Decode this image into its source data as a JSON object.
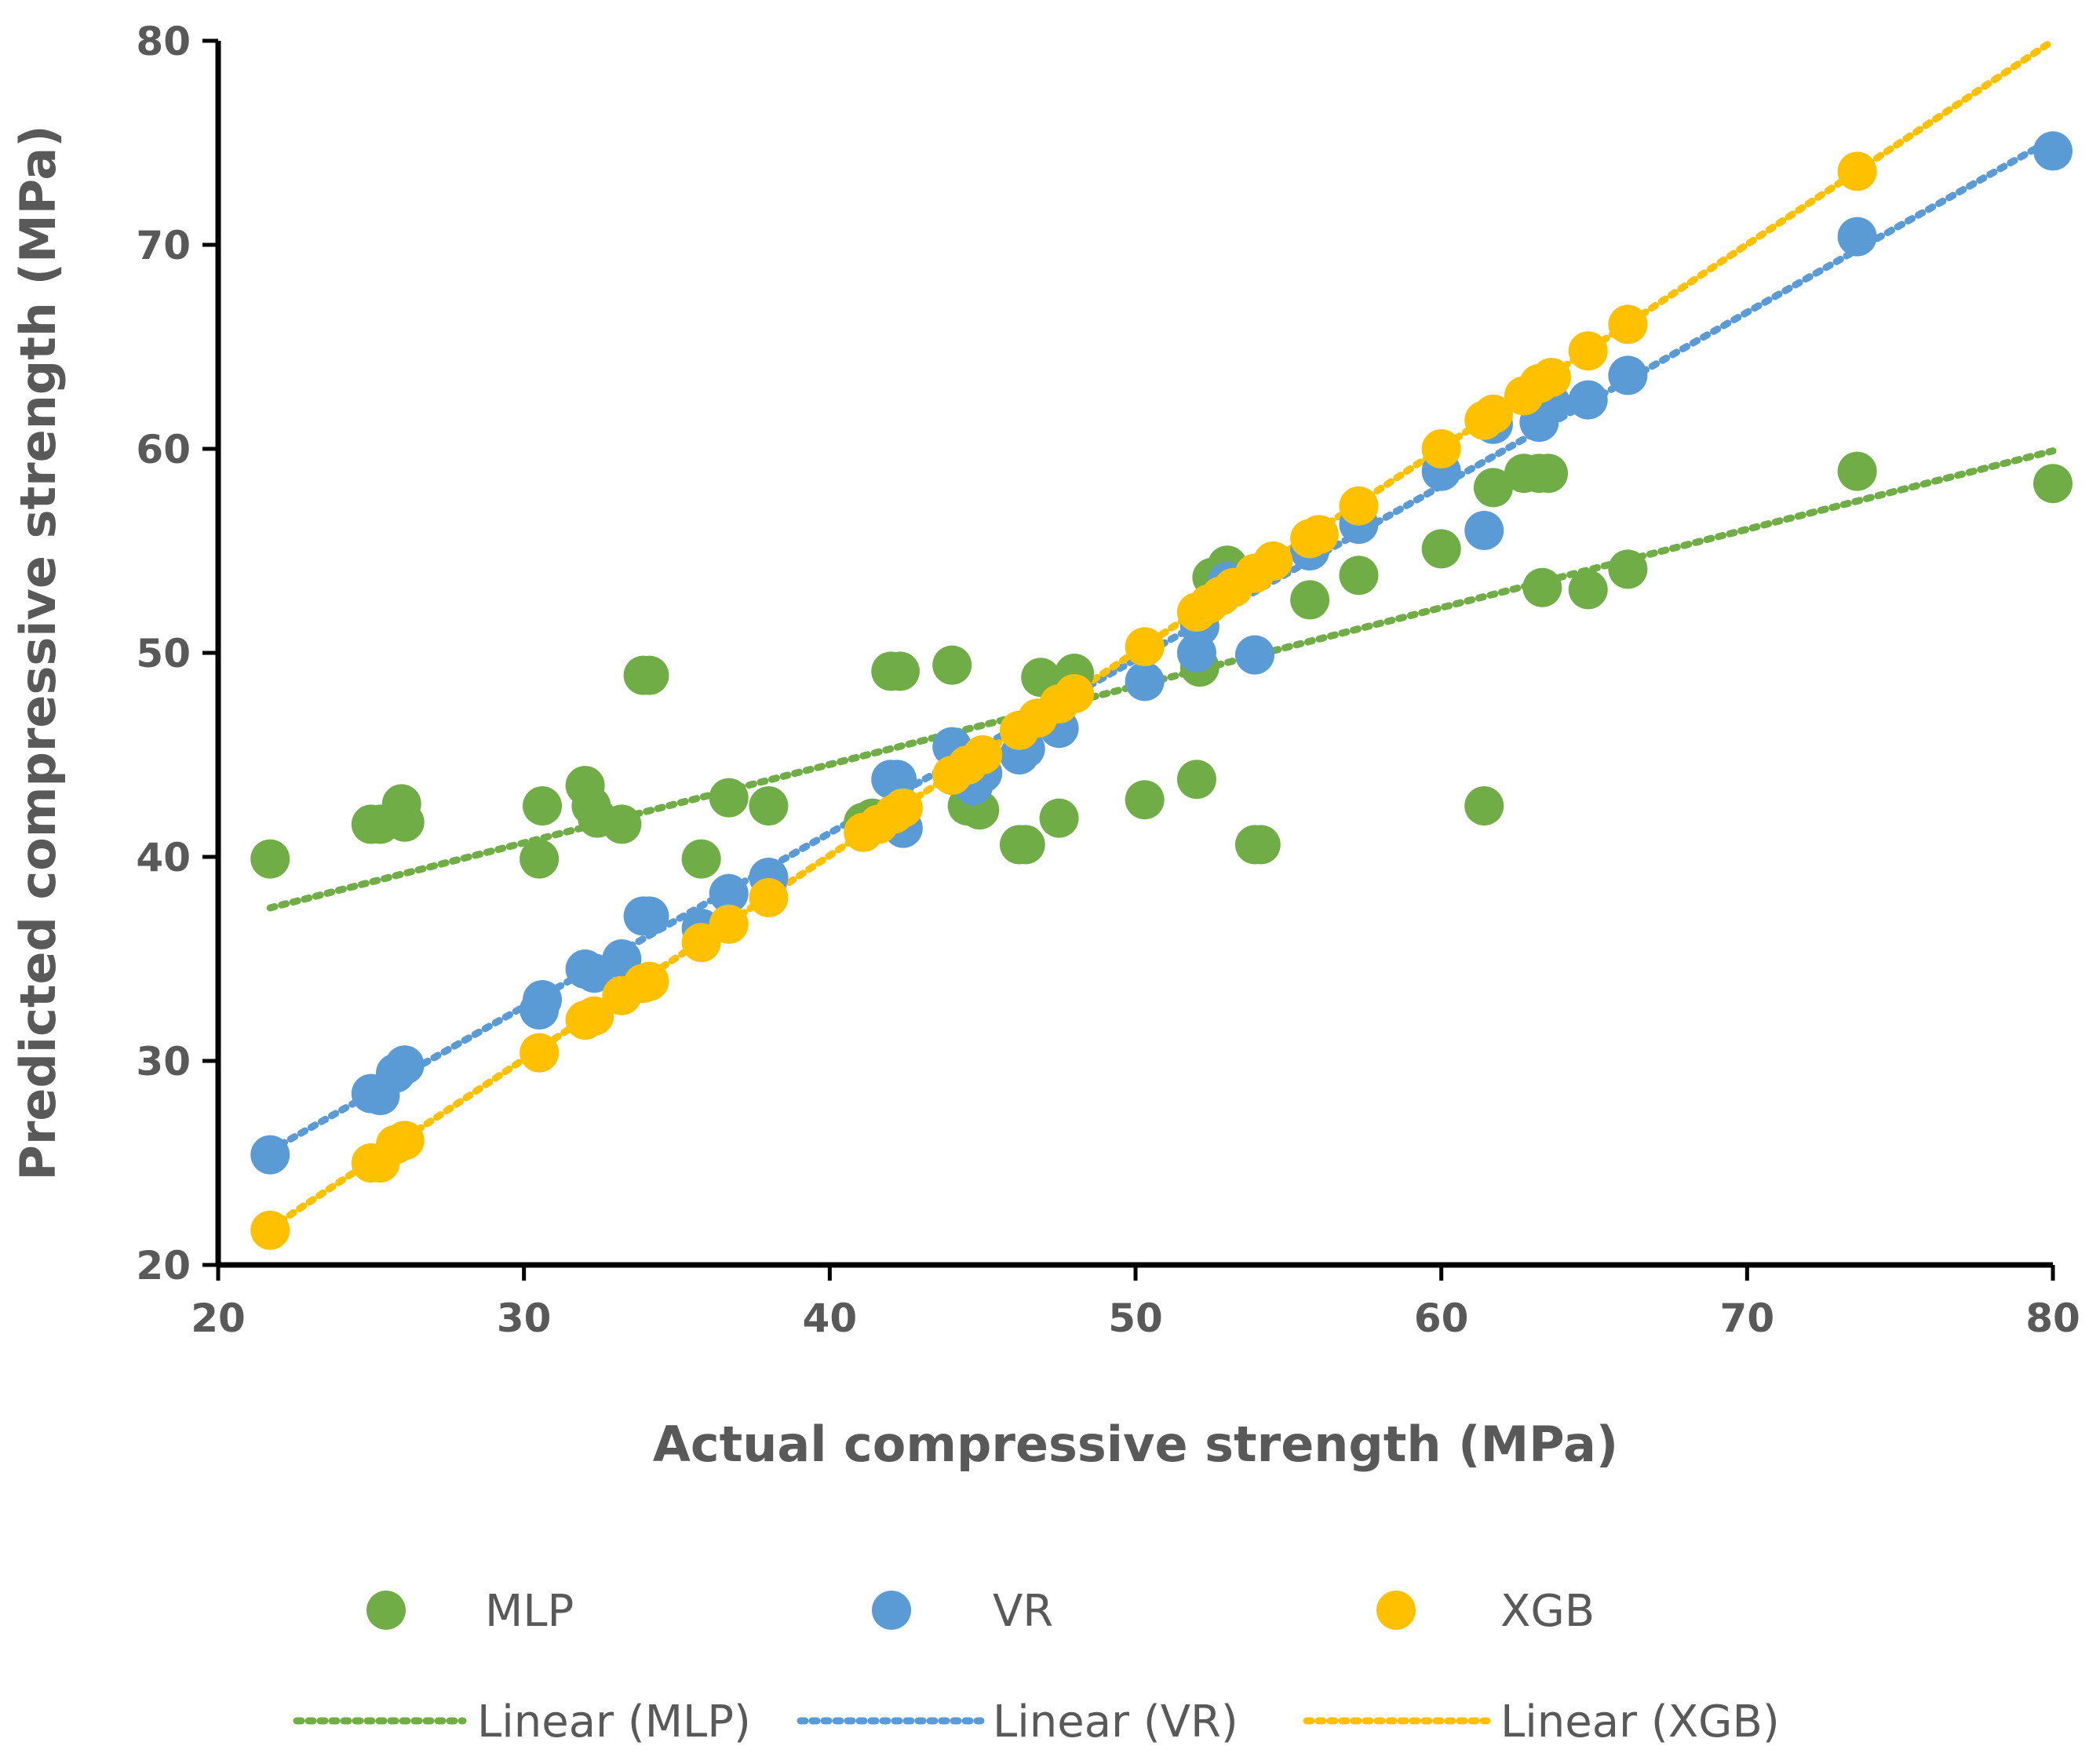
{
  "chart_data": {
    "type": "scatter",
    "xlabel": "Actual compressive strength (MPa)",
    "ylabel": "Predicted compressive strength (MPa)",
    "xlim": [
      20,
      80
    ],
    "ylim": [
      20,
      80
    ],
    "xticks": [
      "20",
      "30",
      "40",
      "50",
      "60",
      "70",
      "80"
    ],
    "yticks": [
      "20",
      "30",
      "40",
      "50",
      "60",
      "70",
      "80"
    ],
    "legend_position": "bottom",
    "series": [
      {
        "name": "MLP",
        "color": "#70ad47",
        "x": [
          21.7,
          25,
          25.3,
          26,
          26.1,
          30.5,
          30.6,
          32,
          32.2,
          32.4,
          33.2,
          33.9,
          34.1,
          35.8,
          36.7,
          38,
          41.1,
          41.4,
          42,
          42.3,
          44,
          44.5,
          44.9,
          46.2,
          46.4,
          46.9,
          47.5,
          48,
          50.3,
          52,
          52.1,
          52.5,
          53,
          53.9,
          54.1,
          55.7,
          57.3,
          60,
          61.4,
          61.7,
          62.7,
          63.2,
          63.5,
          63.3,
          64.8,
          66.1,
          73.6,
          80
        ],
        "y": [
          39.9,
          41.6,
          41.6,
          42.6,
          41.7,
          39.9,
          42.5,
          43.5,
          42.5,
          41.9,
          41.6,
          48.9,
          48.9,
          39.9,
          42.9,
          42.5,
          41.7,
          41.9,
          49.1,
          49.1,
          49.4,
          42.5,
          42.3,
          40.6,
          40.6,
          48.8,
          41.9,
          49,
          42.8,
          43.8,
          49.3,
          53.7,
          54.3,
          40.6,
          40.6,
          52.6,
          53.8,
          55.1,
          42.5,
          58.1,
          58.8,
          58.8,
          58.8,
          53.2,
          53.1,
          54.1,
          58.9,
          58.3
        ]
      },
      {
        "name": "VR",
        "color": "#5b9bd5",
        "x": [
          21.7,
          25,
          25.3,
          25.8,
          26.1,
          30.5,
          30.6,
          32,
          32.3,
          33.2,
          33.9,
          34.1,
          35.8,
          36.7,
          38,
          42,
          42.2,
          42.4,
          44,
          44.7,
          45,
          46.2,
          46.4,
          47.5,
          50.3,
          52,
          52.1,
          53,
          53.9,
          55.7,
          57.3,
          60,
          61.4,
          61.7,
          63.2,
          63.6,
          64.8,
          66.1,
          73.6,
          80
        ],
        "y": [
          25.4,
          28.4,
          28.3,
          29.4,
          29.8,
          32.5,
          33,
          34.5,
          34.3,
          35,
          37.1,
          37.1,
          36.5,
          38.2,
          39,
          43.8,
          43.8,
          41.4,
          45.4,
          43.5,
          44.1,
          45,
          45.3,
          46.3,
          48.6,
          50,
          51.3,
          53.5,
          49.9,
          55,
          56.3,
          58.9,
          56,
          61.2,
          61.3,
          62.2,
          62.4,
          63.6,
          70.4,
          74.6
        ]
      },
      {
        "name": "XGB",
        "color": "#ffc000",
        "x": [
          21.7,
          25,
          25.3,
          25.8,
          26.1,
          30.5,
          32,
          32.3,
          33.2,
          33.9,
          34.1,
          35.8,
          36.7,
          38,
          41.1,
          41.6,
          42.1,
          42.4,
          44,
          44.5,
          45,
          46.2,
          46.8,
          47.5,
          48,
          50.3,
          52,
          52.4,
          52.8,
          53.2,
          53.9,
          54.5,
          55.7,
          56,
          57.3,
          60,
          61.4,
          61.7,
          62.7,
          63.2,
          63.6,
          64.8,
          66.1,
          73.6
        ],
        "y": [
          21.7,
          25,
          25,
          25.9,
          26.1,
          30.4,
          32,
          32.2,
          33.2,
          33.8,
          33.9,
          35.8,
          36.7,
          38,
          41.2,
          41.6,
          42.1,
          42.4,
          44,
          44.5,
          45,
          46.2,
          46.8,
          47.5,
          48,
          50.3,
          52,
          52.4,
          52.8,
          53.2,
          53.9,
          54.5,
          55.6,
          55.8,
          57.2,
          60,
          61.4,
          61.7,
          62.6,
          63.2,
          63.5,
          64.8,
          66.1,
          73.6
        ]
      }
    ],
    "trendlines": [
      {
        "name": "Linear (MLP)",
        "color": "#70ad47",
        "x": [
          21.7,
          80
        ],
        "y": [
          37.5,
          59.9
        ]
      },
      {
        "name": "Linear (VR)",
        "color": "#5b9bd5",
        "x": [
          21.7,
          80
        ],
        "y": [
          25.6,
          75.2
        ]
      },
      {
        "name": "Linear (XGB)",
        "color": "#ffc000",
        "x": [
          21.7,
          80
        ],
        "y": [
          21.8,
          80
        ]
      }
    ]
  }
}
